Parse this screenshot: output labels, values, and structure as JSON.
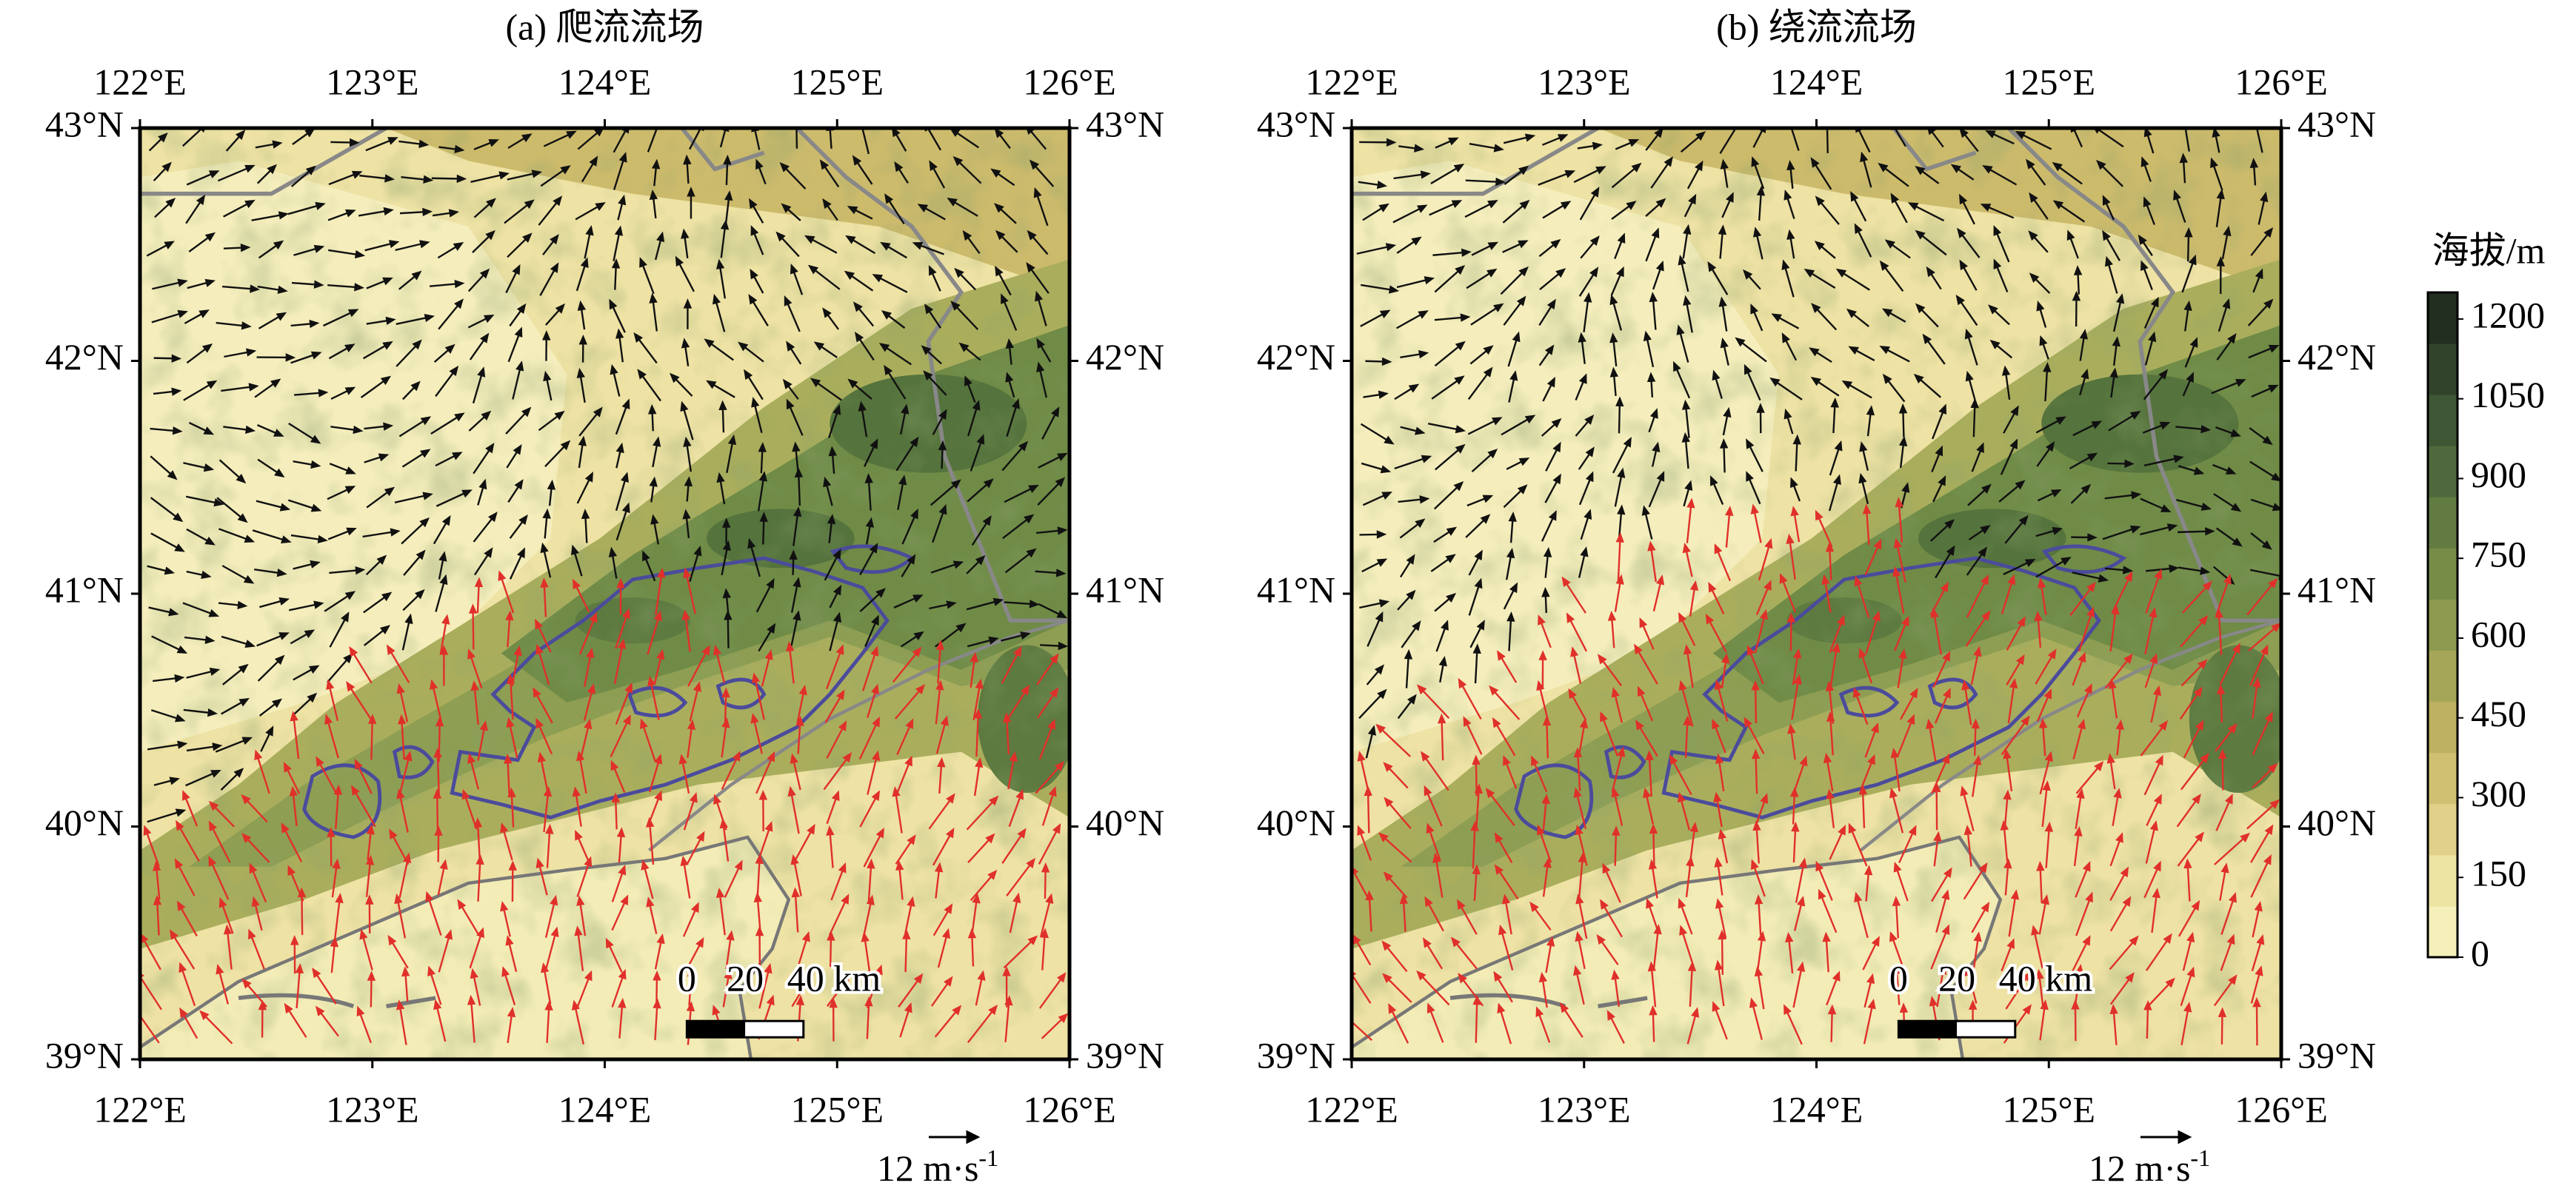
{
  "map": {
    "xlim": [
      122,
      126
    ],
    "ylim": [
      39,
      43
    ],
    "xticks": [
      {
        "value": 122,
        "label": "122°E"
      },
      {
        "value": 123,
        "label": "123°E"
      },
      {
        "value": 124,
        "label": "124°E"
      },
      {
        "value": 125,
        "label": "125°E"
      },
      {
        "value": 126,
        "label": "126°E"
      }
    ],
    "yticks": [
      {
        "value": 39,
        "label": "39°N"
      },
      {
        "value": 40,
        "label": "40°N"
      },
      {
        "value": 41,
        "label": "41°N"
      },
      {
        "value": 42,
        "label": "42°N"
      },
      {
        "value": 43,
        "label": "43°N"
      }
    ]
  },
  "panels": [
    {
      "title": "(a) 爬流流场",
      "scale_bar": {
        "labels": [
          "0",
          "20",
          "40 km"
        ]
      },
      "reference_vector": {
        "label": "12 m·s",
        "exponent": "-1"
      }
    },
    {
      "title": "(b) 绕流流场",
      "scale_bar": {
        "labels": [
          "0",
          "20",
          "40 km"
        ]
      },
      "reference_vector": {
        "label": "12 m·s",
        "exponent": "-1"
      }
    }
  ],
  "colorbar": {
    "title": "海拔/m",
    "lim": [
      0,
      1250
    ],
    "ticks": [
      0,
      150,
      300,
      450,
      600,
      750,
      900,
      1050,
      1200
    ],
    "colors": [
      "#f5efb9",
      "#ece2a2",
      "#e0d089",
      "#d0c072",
      "#bdb162",
      "#a6a658",
      "#8d9a4f",
      "#768c47",
      "#627b42",
      "#50693c",
      "#405735",
      "#31442b",
      "#222e20"
    ]
  }
}
